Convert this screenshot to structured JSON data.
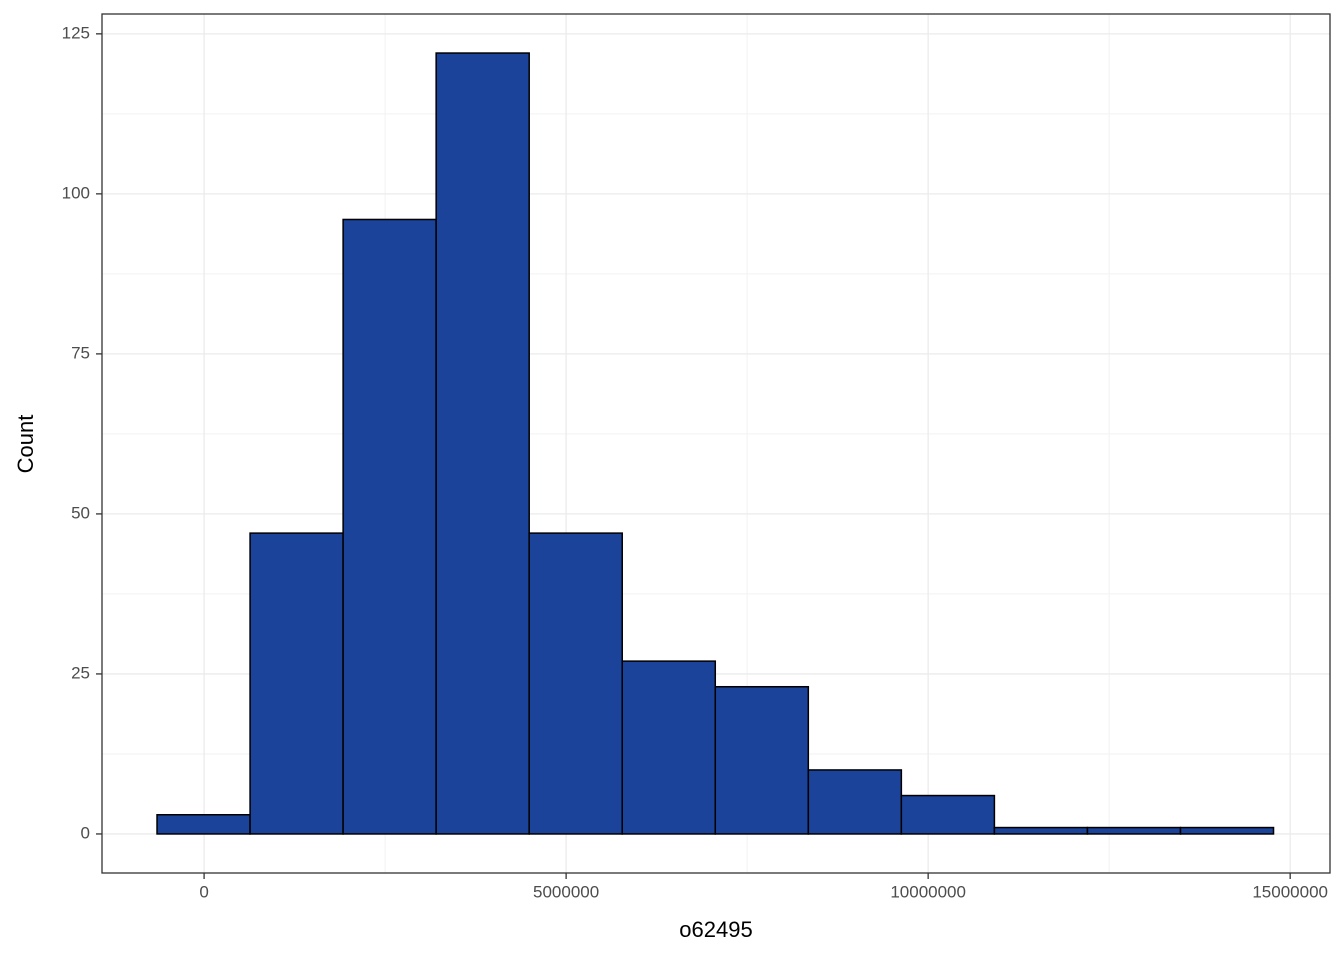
{
  "chart_data": {
    "type": "histogram",
    "x_label": "o62495",
    "y_label": "Count",
    "bins": [
      -650000,
      635000,
      1920000,
      3205000,
      4490000,
      5775000,
      7060000,
      8345000,
      9630000,
      10915000,
      12200000,
      13485000,
      14770000
    ],
    "values": [
      3,
      47,
      96,
      122,
      47,
      27,
      23,
      10,
      6,
      1,
      1,
      1
    ],
    "color": "#1a4399",
    "edge_color": "#000000",
    "xlim": [
      -1410000,
      15550000
    ],
    "xticks": [
      0,
      5000000,
      10000000,
      15000000
    ],
    "ylim": [
      -6.1,
      128.1
    ],
    "yticks": [
      0,
      25,
      50,
      75,
      100,
      125
    ],
    "grid": true
  }
}
